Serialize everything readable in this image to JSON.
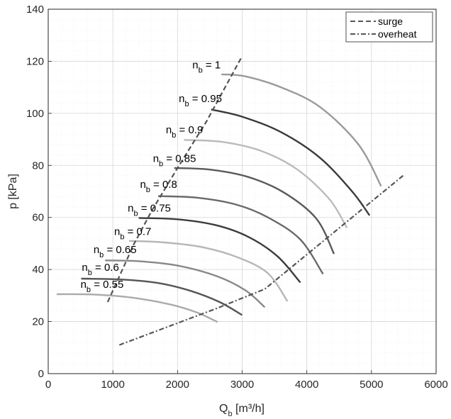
{
  "chart_data": {
    "type": "line",
    "xlabel": "Q",
    "xlabel_sub": "b",
    "xlabel_unit": " [m³/h]",
    "ylabel": "p [kPa]",
    "xlim": [
      0,
      6000
    ],
    "ylim": [
      0,
      140
    ],
    "xticks": [
      0,
      1000,
      2000,
      3000,
      4000,
      5000,
      6000
    ],
    "yticks": [
      0,
      20,
      40,
      60,
      80,
      100,
      120,
      140
    ],
    "grid": true,
    "minor_grid": true,
    "legend_position": "top-right",
    "legend": [
      {
        "name": "surge",
        "style": "dashed",
        "color": "#555555"
      },
      {
        "name": "overheat",
        "style": "dashdot",
        "color": "#555555"
      }
    ],
    "curves": [
      {
        "label_main": "n",
        "label_sub": "b",
        "label_value": " = 0.55",
        "label_at": [
          500,
          33
        ],
        "color": "#aaaaaa",
        "points": [
          [
            130,
            30.5
          ],
          [
            700,
            30.4
          ],
          [
            1300,
            29.2
          ],
          [
            1900,
            26.5
          ],
          [
            2300,
            23.5
          ],
          [
            2620,
            19.8
          ]
        ]
      },
      {
        "label_main": "n",
        "label_sub": "b",
        "label_value": " = 0.6",
        "label_at": [
          520,
          39.5
        ],
        "color": "#555555",
        "points": [
          [
            510,
            36.5
          ],
          [
            1100,
            36.2
          ],
          [
            1700,
            34.8
          ],
          [
            2200,
            31.8
          ],
          [
            2650,
            27.5
          ],
          [
            3000,
            22.5
          ]
        ]
      },
      {
        "label_main": "n",
        "label_sub": "b",
        "label_value": " = 0.65",
        "label_at": [
          700,
          46.3
        ],
        "color": "#888888",
        "points": [
          [
            880,
            43.5
          ],
          [
            1400,
            43.2
          ],
          [
            2000,
            41.5
          ],
          [
            2600,
            37.5
          ],
          [
            3050,
            32
          ],
          [
            3350,
            25.5
          ]
        ]
      },
      {
        "label_main": "n",
        "label_sub": "b",
        "label_value": " = 0.7",
        "label_at": [
          1020,
          53.3
        ],
        "color": "#b7b7b7",
        "points": [
          [
            1250,
            51
          ],
          [
            1800,
            50.4
          ],
          [
            2400,
            48.5
          ],
          [
            2950,
            44.5
          ],
          [
            3400,
            38.5
          ],
          [
            3700,
            27.8
          ]
        ]
      },
      {
        "label_main": "n",
        "label_sub": "b",
        "label_value": " = 0.75",
        "label_at": [
          1230,
          62.3
        ],
        "color": "#3c3c3c",
        "points": [
          [
            1400,
            59.8
          ],
          [
            2000,
            59.3
          ],
          [
            2600,
            57
          ],
          [
            3100,
            52.5
          ],
          [
            3550,
            45
          ],
          [
            3900,
            35
          ]
        ]
      },
      {
        "label_main": "n",
        "label_sub": "b",
        "label_value": " = 0.8",
        "label_at": [
          1420,
          71.3
        ],
        "color": "#6a6a6a",
        "points": [
          [
            1700,
            68.2
          ],
          [
            2300,
            67.6
          ],
          [
            2900,
            65
          ],
          [
            3400,
            60
          ],
          [
            3900,
            51.5
          ],
          [
            4250,
            38.3
          ]
        ]
      },
      {
        "label_main": "n",
        "label_sub": "b",
        "label_value": " = 0.85",
        "label_at": [
          1620,
          81.3
        ],
        "color": "#5a5a5a",
        "points": [
          [
            1950,
            79
          ],
          [
            2500,
            78.4
          ],
          [
            3100,
            75.5
          ],
          [
            3650,
            69.5
          ],
          [
            4150,
            59.5
          ],
          [
            4420,
            46
          ]
        ]
      },
      {
        "label_main": "n",
        "label_sub": "b",
        "label_value": " = 0.9",
        "label_at": [
          1820,
          92.3
        ],
        "color": "#bbbbbb",
        "points": [
          [
            2100,
            89.8
          ],
          [
            2700,
            89
          ],
          [
            3300,
            85.5
          ],
          [
            3850,
            78.5
          ],
          [
            4350,
            67
          ],
          [
            4620,
            56
          ]
        ]
      },
      {
        "label_main": "n",
        "label_sub": "b",
        "label_value": " = 0.95",
        "label_at": [
          2020,
          104.3
        ],
        "color": "#3a3a3a",
        "points": [
          [
            2520,
            101.5
          ],
          [
            3000,
            98.7
          ],
          [
            3600,
            92.8
          ],
          [
            4200,
            83
          ],
          [
            4700,
            70
          ],
          [
            4970,
            60.8
          ]
        ]
      },
      {
        "label_main": "n",
        "label_sub": "b",
        "label_value": " = 1",
        "label_at": [
          2230,
          117.3
        ],
        "color": "#9a9a9a",
        "points": [
          [
            2680,
            115
          ],
          [
            3050,
            114.2
          ],
          [
            3600,
            110
          ],
          [
            4200,
            102.5
          ],
          [
            4800,
            88
          ],
          [
            5150,
            72
          ]
        ]
      }
    ],
    "surge": [
      [
        920,
        27.5
      ],
      [
        1330,
        50
      ],
      [
        1600,
        62.5
      ],
      [
        2000,
        79
      ],
      [
        2450,
        97
      ],
      [
        3000,
        122
      ]
    ],
    "overheat": [
      [
        1100,
        11
      ],
      [
        2600,
        25
      ],
      [
        3350,
        32.5
      ],
      [
        5500,
        76.3
      ]
    ]
  }
}
